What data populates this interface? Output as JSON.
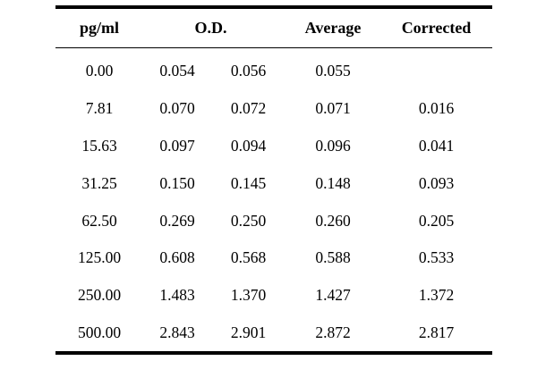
{
  "table": {
    "headers": {
      "pg": "pg/ml",
      "od": "O.D.",
      "average": "Average",
      "corrected": "Corrected"
    },
    "rows": [
      {
        "pg": "0.00",
        "od1": "0.054",
        "od2": "0.056",
        "average": "0.055",
        "corrected": ""
      },
      {
        "pg": "7.81",
        "od1": "0.070",
        "od2": "0.072",
        "average": "0.071",
        "corrected": "0.016"
      },
      {
        "pg": "15.63",
        "od1": "0.097",
        "od2": "0.094",
        "average": "0.096",
        "corrected": "0.041"
      },
      {
        "pg": "31.25",
        "od1": "0.150",
        "od2": "0.145",
        "average": "0.148",
        "corrected": "0.093"
      },
      {
        "pg": "62.50",
        "od1": "0.269",
        "od2": "0.250",
        "average": "0.260",
        "corrected": "0.205"
      },
      {
        "pg": "125.00",
        "od1": "0.608",
        "od2": "0.568",
        "average": "0.588",
        "corrected": "0.533"
      },
      {
        "pg": "250.00",
        "od1": "1.483",
        "od2": "1.370",
        "average": "1.427",
        "corrected": "1.372"
      },
      {
        "pg": "500.00",
        "od1": "2.843",
        "od2": "2.901",
        "average": "2.872",
        "corrected": "2.817"
      }
    ]
  }
}
